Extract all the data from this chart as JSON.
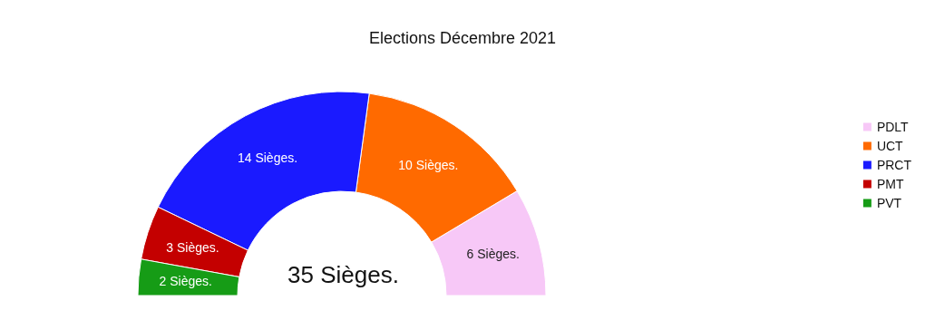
{
  "chart_data": {
    "type": "donut",
    "title": "Elections Décembre 2021",
    "categories": [
      "PDLT",
      "UCT",
      "PRCT",
      "PMT",
      "PVT"
    ],
    "values": [
      6,
      10,
      14,
      3,
      2
    ],
    "colors": [
      "#f7c8f7",
      "#ff6a00",
      "#1a1aff",
      "#c40000",
      "#169c16"
    ],
    "value_labels": [
      "6 Sièges.",
      "10 Sièges.",
      "14 Sièges.",
      "3 Sièges.",
      "2 Sièges."
    ],
    "annotations": [
      "35 Sièges."
    ],
    "legend": "right"
  }
}
